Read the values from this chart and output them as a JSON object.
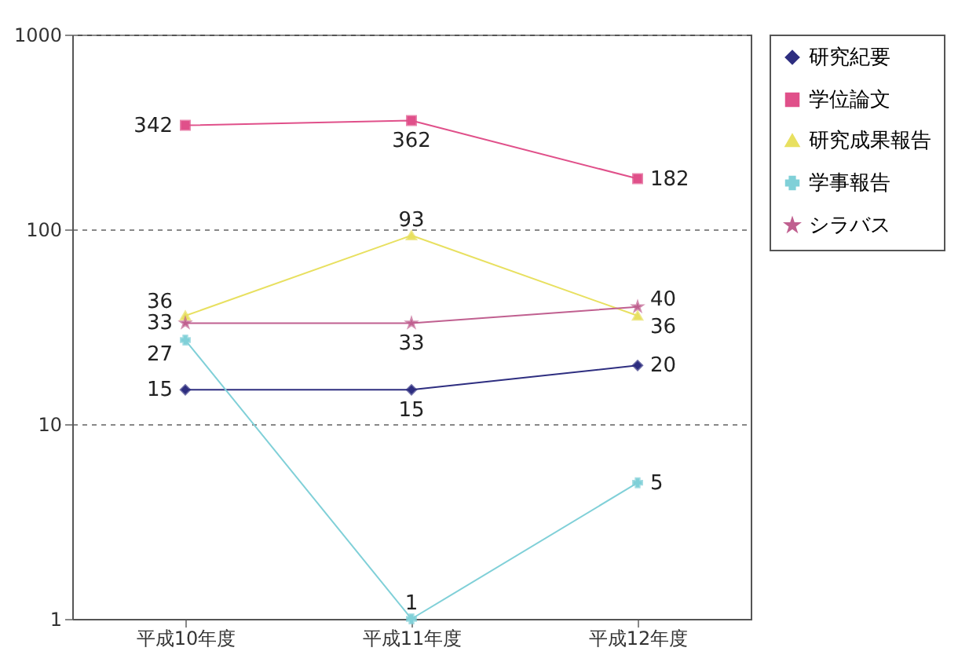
{
  "chart_data": {
    "type": "line",
    "categories": [
      "平成10年度",
      "平成11年度",
      "平成12年度"
    ],
    "log": true,
    "ylim": [
      1,
      1000
    ],
    "yticks": [
      1,
      10,
      100,
      1000
    ],
    "grid": "y",
    "legend": "right",
    "data_labels": true,
    "series": [
      {
        "name": "研究紀要",
        "color": "#2e2e80",
        "marker": "diamond",
        "values": [
          15,
          15,
          20
        ]
      },
      {
        "name": "学位論文",
        "color": "#e0508a",
        "marker": "square",
        "values": [
          342,
          362,
          182
        ]
      },
      {
        "name": "研究成果報告",
        "color": "#e8e060",
        "marker": "triangle",
        "values": [
          36,
          93,
          36
        ]
      },
      {
        "name": "学事報告",
        "color": "#80d0d8",
        "marker": "cross",
        "values": [
          27,
          1,
          5
        ]
      },
      {
        "name": "シラバス",
        "color": "#c06090",
        "marker": "star",
        "values": [
          33,
          33,
          40
        ]
      }
    ]
  }
}
